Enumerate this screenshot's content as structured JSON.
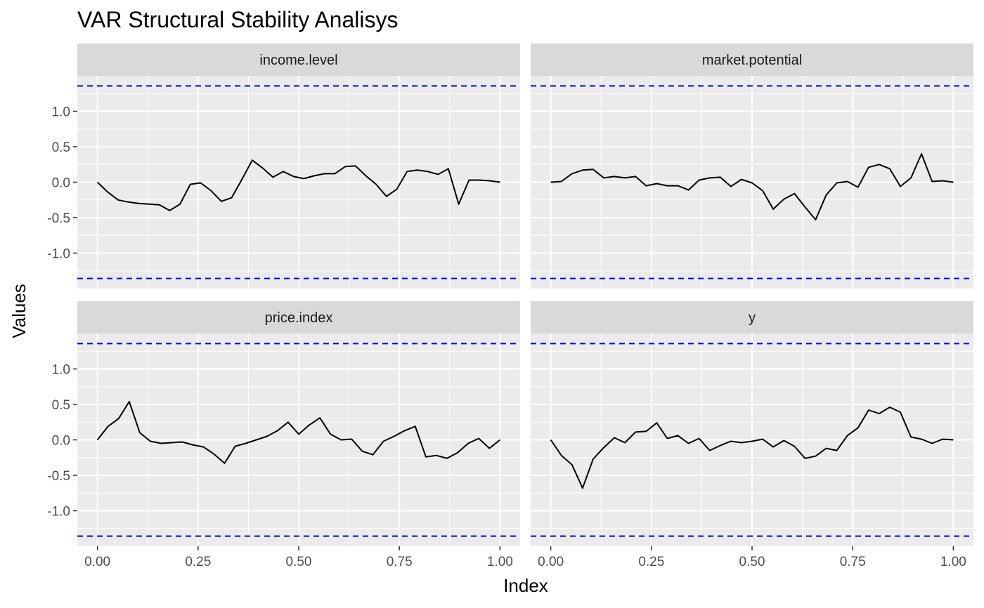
{
  "chart_data": {
    "type": "line",
    "title": "VAR Structural Stability Analisys",
    "xlabel": "Index",
    "ylabel": "Values",
    "xlim": [
      -0.05,
      1.05
    ],
    "ylim": [
      -1.5,
      1.5
    ],
    "x_ticks": [
      0,
      0.25,
      0.5,
      0.75,
      1
    ],
    "x_tick_labels": [
      "0.00",
      "0.25",
      "0.50",
      "0.75",
      "1.00"
    ],
    "y_ticks": [
      -1,
      -0.5,
      0,
      0.5,
      1
    ],
    "y_tick_labels": [
      "-1.0",
      "-0.5",
      "0.0",
      "0.5",
      "1.0"
    ],
    "boundary": 1.358,
    "grid": true,
    "colors": {
      "series": "#000000",
      "boundary": "#0000ff",
      "panel_bg": "#ebebeb",
      "strip_bg": "#d9d9d9",
      "grid": "#ffffff"
    },
    "facets": [
      {
        "name": "income.level",
        "values": [
          0.0,
          -0.14,
          -0.25,
          -0.28,
          -0.3,
          -0.31,
          -0.32,
          -0.4,
          -0.31,
          -0.03,
          -0.01,
          -0.12,
          -0.27,
          -0.22,
          0.04,
          0.31,
          0.2,
          0.07,
          0.15,
          0.08,
          0.05,
          0.09,
          0.12,
          0.12,
          0.22,
          0.23,
          0.09,
          -0.03,
          -0.2,
          -0.1,
          0.15,
          0.17,
          0.15,
          0.11,
          0.19,
          -0.31,
          0.03,
          0.03,
          0.02,
          0.0
        ]
      },
      {
        "name": "market.potential",
        "values": [
          0.0,
          0.01,
          0.12,
          0.17,
          0.18,
          0.06,
          0.08,
          0.06,
          0.08,
          -0.05,
          -0.02,
          -0.05,
          -0.05,
          -0.11,
          0.03,
          0.06,
          0.07,
          -0.06,
          0.04,
          -0.01,
          -0.12,
          -0.38,
          -0.24,
          -0.16,
          -0.35,
          -0.53,
          -0.18,
          -0.01,
          0.01,
          -0.07,
          0.21,
          0.25,
          0.19,
          -0.06,
          0.06,
          0.4,
          0.01,
          0.02,
          0.0
        ]
      },
      {
        "name": "price.index",
        "values": [
          0.0,
          0.19,
          0.3,
          0.54,
          0.1,
          -0.02,
          -0.05,
          -0.04,
          -0.03,
          -0.07,
          -0.1,
          -0.2,
          -0.33,
          -0.09,
          -0.05,
          0.0,
          0.05,
          0.13,
          0.25,
          0.08,
          0.21,
          0.31,
          0.08,
          0.0,
          0.01,
          -0.16,
          -0.21,
          -0.02,
          0.05,
          0.13,
          0.19,
          -0.24,
          -0.22,
          -0.26,
          -0.18,
          -0.05,
          0.02,
          -0.12,
          0.0
        ]
      },
      {
        "name": "y",
        "values": [
          0.0,
          -0.22,
          -0.35,
          -0.68,
          -0.27,
          -0.11,
          0.03,
          -0.04,
          0.11,
          0.12,
          0.24,
          0.02,
          0.06,
          -0.05,
          0.02,
          -0.15,
          -0.08,
          -0.02,
          -0.04,
          -0.02,
          0.01,
          -0.1,
          -0.01,
          -0.09,
          -0.26,
          -0.23,
          -0.12,
          -0.15,
          0.06,
          0.17,
          0.42,
          0.37,
          0.46,
          0.39,
          0.04,
          0.01,
          -0.05,
          0.01,
          0.0
        ]
      }
    ]
  }
}
